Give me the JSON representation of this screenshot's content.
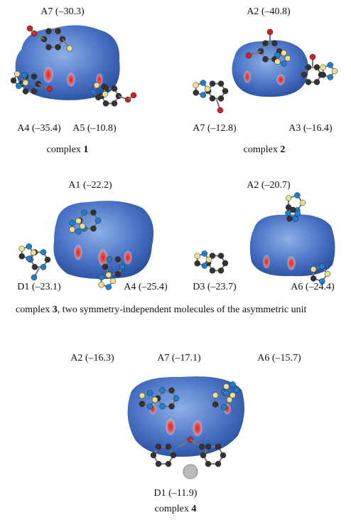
{
  "panels": [
    {
      "labels": [
        "A7 (–30.3)",
        "A4 (–35.4)",
        "A5 (–10.8)"
      ],
      "caption": {
        "text": "complex ",
        "number": "1"
      }
    },
    {
      "labels": [
        "A2 (–40.8)",
        "A7 (–12.8)",
        "A3 (–16.4)"
      ],
      "caption": {
        "text": "complex ",
        "number": "2"
      }
    },
    {
      "labels": [
        "A1 (–22.2)",
        "D1 (–23.1)",
        "A4 (–25.4)"
      ]
    },
    {
      "labels": [
        "A2 (–20.7)",
        "D3 (–23.7)",
        "A6 (–24.4)"
      ]
    },
    {
      "labels": [
        "A2 (–16.3)",
        "A7 (–17.1)",
        "A6 (–15.7)",
        "D1 (–11.9)"
      ],
      "caption": {
        "text": "complex ",
        "number": "4"
      }
    }
  ],
  "caption3": {
    "text": "complex ",
    "number": "3",
    "rest": ", two symmetry-independent molecules of the asymmetric unit"
  }
}
